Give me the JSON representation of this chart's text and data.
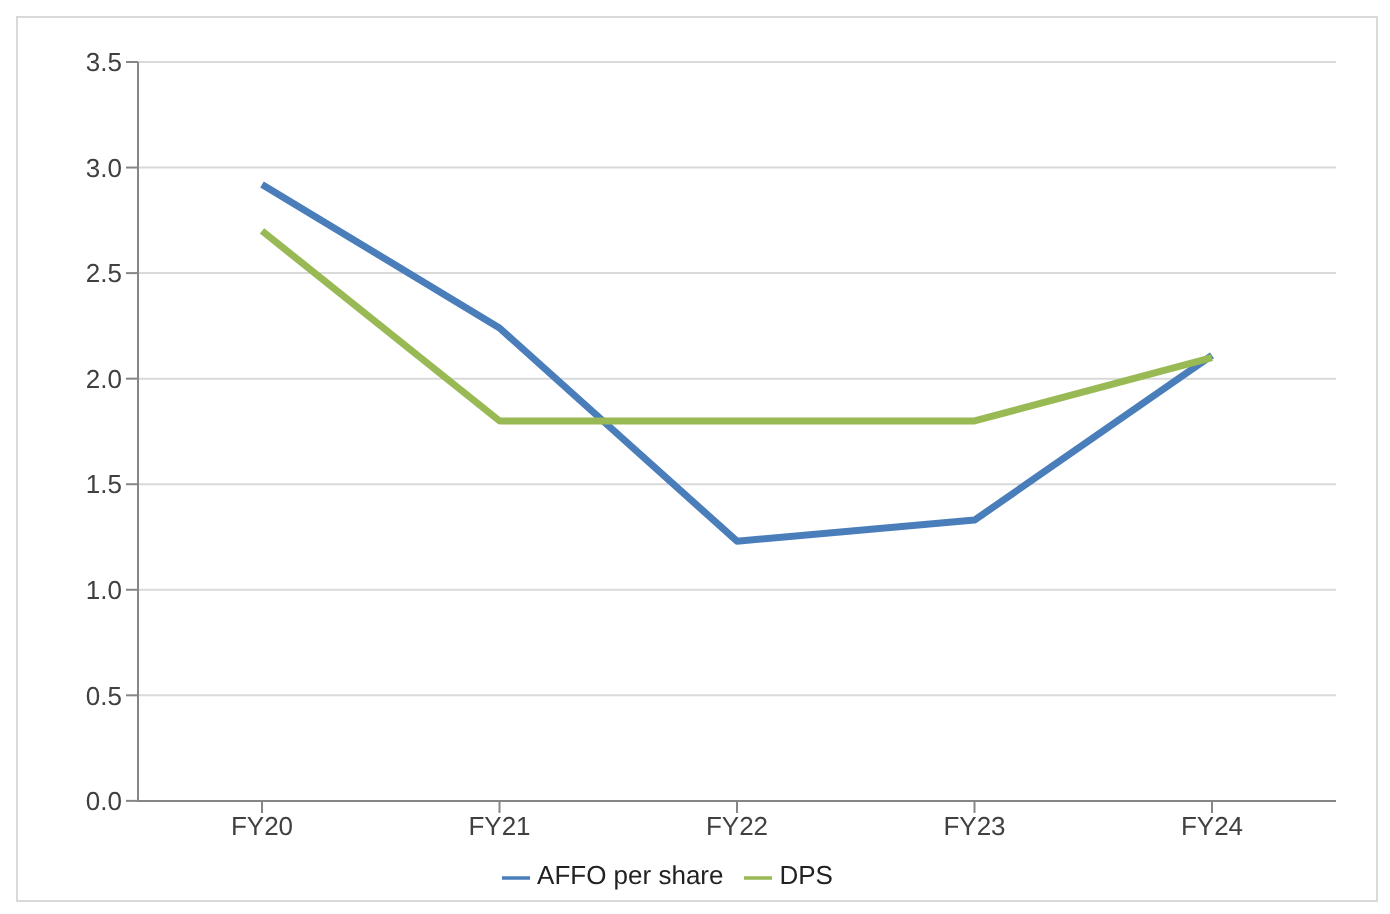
{
  "chart_data": {
    "type": "line",
    "categories": [
      "FY20",
      "FY21",
      "FY22",
      "FY23",
      "FY24"
    ],
    "series": [
      {
        "name": "AFFO per share",
        "color": "#4a7ebb",
        "values": [
          2.92,
          2.24,
          1.23,
          1.33,
          2.11
        ]
      },
      {
        "name": "DPS",
        "color": "#98b954",
        "values": [
          2.7,
          1.8,
          1.8,
          1.8,
          2.1
        ]
      }
    ],
    "ylim": [
      0,
      3.5
    ],
    "yticks": [
      {
        "value": 0,
        "label": "0.0"
      },
      0.5,
      {
        "value": 1,
        "label": "1.0"
      },
      1.5,
      {
        "value": 2,
        "label": "2.0"
      },
      2.5,
      {
        "value": 3,
        "label": "3.0"
      },
      3.5
    ],
    "grid": "y",
    "legend": "bottom"
  }
}
